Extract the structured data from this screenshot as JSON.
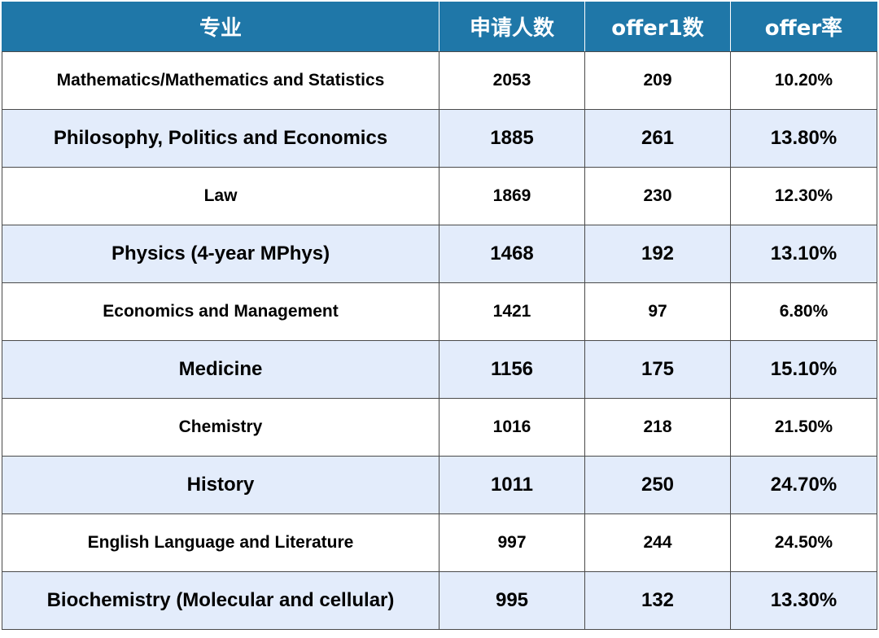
{
  "table": {
    "headers": [
      "专业",
      "申请人数",
      "offer1数",
      "offer率"
    ],
    "rows": [
      {
        "major": "Mathematics/Mathematics and Statistics",
        "applicants": "2053",
        "offers": "209",
        "rate": "10.20%"
      },
      {
        "major": "Philosophy, Politics and Economics",
        "applicants": "1885",
        "offers": "261",
        "rate": "13.80%"
      },
      {
        "major": "Law",
        "applicants": "1869",
        "offers": "230",
        "rate": "12.30%"
      },
      {
        "major": "Physics (4-year MPhys)",
        "applicants": "1468",
        "offers": "192",
        "rate": "13.10%"
      },
      {
        "major": "Economics and Management",
        "applicants": "1421",
        "offers": "97",
        "rate": "6.80%"
      },
      {
        "major": "Medicine",
        "applicants": "1156",
        "offers": "175",
        "rate": "15.10%"
      },
      {
        "major": "Chemistry",
        "applicants": "1016",
        "offers": "218",
        "rate": "21.50%"
      },
      {
        "major": "History",
        "applicants": "1011",
        "offers": "250",
        "rate": "24.70%"
      },
      {
        "major": "English Language and Literature",
        "applicants": "997",
        "offers": "244",
        "rate": "24.50%"
      },
      {
        "major": "Biochemistry (Molecular and cellular)",
        "applicants": "995",
        "offers": "132",
        "rate": "13.30%"
      }
    ]
  },
  "colors": {
    "header_bg": "#1f77a8",
    "alt_row_bg": "#e3ecfb",
    "plain_row_bg": "#ffffff"
  }
}
